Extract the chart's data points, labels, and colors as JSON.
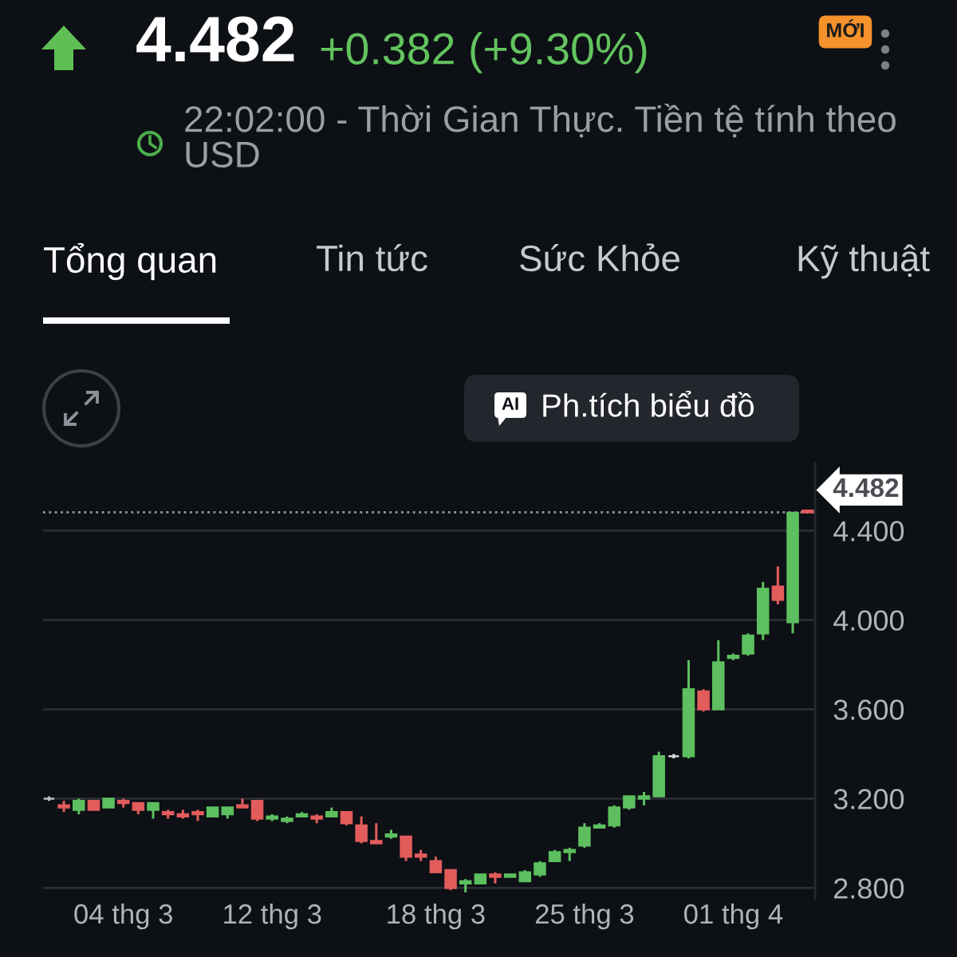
{
  "chart_data": {
    "type": "candlestick",
    "title": "4.482",
    "subtitle": "+0.382 (+9.30%)",
    "annotations": [
      "MỚI",
      "22:02:00 - Thời Gian Thực. Tiền tệ tính theo USD",
      "Tổng quan",
      "Tin tức",
      "Sức Khỏe",
      "Kỹ thuật",
      "AI",
      "Ph.tích biểu đồ"
    ],
    "categories": [
      null,
      null,
      null,
      null,
      null,
      "04 thg 3",
      null,
      null,
      null,
      null,
      null,
      null,
      null,
      null,
      null,
      "12 thg 3",
      null,
      null,
      null,
      null,
      null,
      null,
      null,
      null,
      null,
      null,
      "18 thg 3",
      null,
      null,
      null,
      null,
      null,
      null,
      null,
      null,
      null,
      "25 thg 3",
      null,
      null,
      null,
      null,
      null,
      null,
      null,
      null,
      null,
      "01 thg 4",
      null,
      null,
      null,
      null,
      null
    ],
    "ohlc": [
      [
        3.2,
        3.21,
        3.19,
        3.2
      ],
      [
        3.17,
        3.19,
        3.14,
        3.16
      ],
      [
        3.15,
        3.2,
        3.13,
        3.19
      ],
      [
        3.19,
        3.19,
        3.15,
        3.15
      ],
      [
        3.16,
        3.2,
        3.16,
        3.2
      ],
      [
        3.19,
        3.2,
        3.16,
        3.18
      ],
      [
        3.18,
        3.18,
        3.13,
        3.15
      ],
      [
        3.15,
        3.18,
        3.11,
        3.18
      ],
      [
        3.14,
        3.15,
        3.11,
        3.13
      ],
      [
        3.13,
        3.15,
        3.11,
        3.12
      ],
      [
        3.14,
        3.15,
        3.1,
        3.13
      ],
      [
        3.12,
        3.16,
        3.12,
        3.16
      ],
      [
        3.13,
        3.16,
        3.11,
        3.16
      ],
      [
        3.17,
        3.2,
        3.16,
        3.16
      ],
      [
        3.19,
        3.19,
        3.1,
        3.11
      ],
      [
        3.11,
        3.13,
        3.1,
        3.12
      ],
      [
        3.1,
        3.12,
        3.09,
        3.11
      ],
      [
        3.12,
        3.14,
        3.12,
        3.13
      ],
      [
        3.12,
        3.13,
        3.09,
        3.11
      ],
      [
        3.12,
        3.16,
        3.12,
        3.14
      ],
      [
        3.14,
        3.14,
        3.08,
        3.09
      ],
      [
        3.08,
        3.12,
        3.0,
        3.01
      ],
      [
        3.01,
        3.09,
        3.0,
        3.0
      ],
      [
        3.03,
        3.06,
        3.02,
        3.04
      ],
      [
        3.03,
        3.03,
        2.92,
        2.94
      ],
      [
        2.95,
        2.97,
        2.92,
        2.94
      ],
      [
        2.92,
        2.94,
        2.87,
        2.87
      ],
      [
        2.88,
        2.88,
        2.79,
        2.8
      ],
      [
        2.82,
        2.84,
        2.78,
        2.83
      ],
      [
        2.82,
        2.86,
        2.82,
        2.86
      ],
      [
        2.86,
        2.87,
        2.82,
        2.85
      ],
      [
        2.85,
        2.86,
        2.85,
        2.86
      ],
      [
        2.83,
        2.88,
        2.83,
        2.87
      ],
      [
        2.86,
        2.92,
        2.85,
        2.91
      ],
      [
        2.92,
        2.97,
        2.92,
        2.96
      ],
      [
        2.96,
        2.98,
        2.92,
        2.97
      ],
      [
        2.99,
        3.09,
        2.98,
        3.07
      ],
      [
        3.07,
        3.09,
        3.07,
        3.08
      ],
      [
        3.08,
        3.17,
        3.07,
        3.16
      ],
      [
        3.16,
        3.21,
        3.15,
        3.21
      ],
      [
        3.2,
        3.23,
        3.17,
        3.21
      ],
      [
        3.21,
        3.41,
        3.21,
        3.39
      ],
      [
        3.39,
        3.4,
        3.38,
        3.39
      ],
      [
        3.39,
        3.82,
        3.38,
        3.69
      ],
      [
        3.68,
        3.69,
        3.59,
        3.6
      ],
      [
        3.6,
        3.91,
        3.6,
        3.81
      ],
      [
        3.83,
        3.85,
        3.82,
        3.84
      ],
      [
        3.85,
        3.94,
        3.84,
        3.93
      ],
      [
        3.94,
        4.17,
        3.91,
        4.14
      ],
      [
        4.15,
        4.24,
        4.07,
        4.09
      ],
      [
        3.99,
        4.48,
        3.94,
        4.48
      ],
      [
        4.49,
        4.49,
        4.48,
        4.482
      ]
    ],
    "colors": [
      "#bdbdbd",
      "#e25c5c",
      "#5dbf5f",
      "#e25c5c",
      "#5dbf5f",
      "#e25c5c",
      "#e25c5c",
      "#5dbf5f",
      "#e25c5c",
      "#e25c5c",
      "#e25c5c",
      "#5dbf5f",
      "#5dbf5f",
      "#e25c5c",
      "#e25c5c",
      "#5dbf5f",
      "#5dbf5f",
      "#5dbf5f",
      "#e25c5c",
      "#5dbf5f",
      "#e25c5c",
      "#e25c5c",
      "#e25c5c",
      "#5dbf5f",
      "#e25c5c",
      "#e25c5c",
      "#e25c5c",
      "#e25c5c",
      "#5dbf5f",
      "#5dbf5f",
      "#e25c5c",
      "#5dbf5f",
      "#5dbf5f",
      "#5dbf5f",
      "#5dbf5f",
      "#5dbf5f",
      "#5dbf5f",
      "#5dbf5f",
      "#5dbf5f",
      "#5dbf5f",
      "#5dbf5f",
      "#5dbf5f",
      "#d9d9d9",
      "#5dbf5f",
      "#e25c5c",
      "#5dbf5f",
      "#5dbf5f",
      "#5dbf5f",
      "#5dbf5f",
      "#e25c5c",
      "#5dbf5f",
      "#e25c5c"
    ],
    "ylim": [
      2.75,
      4.7
    ],
    "yticks": [
      {
        "value": 2.8,
        "label": "2.800"
      },
      {
        "value": 3.2,
        "label": "3.200"
      },
      {
        "value": 3.6,
        "label": "3.600"
      },
      {
        "value": 4.0,
        "label": "4.000"
      },
      {
        "value": 4.4,
        "label": "4.400"
      }
    ],
    "grid": "y",
    "ref_lines": [
      {
        "axis": "y",
        "value": 4.482,
        "label": "4.482",
        "line_style": "dotted",
        "color": "#9a9a9a"
      }
    ]
  }
}
